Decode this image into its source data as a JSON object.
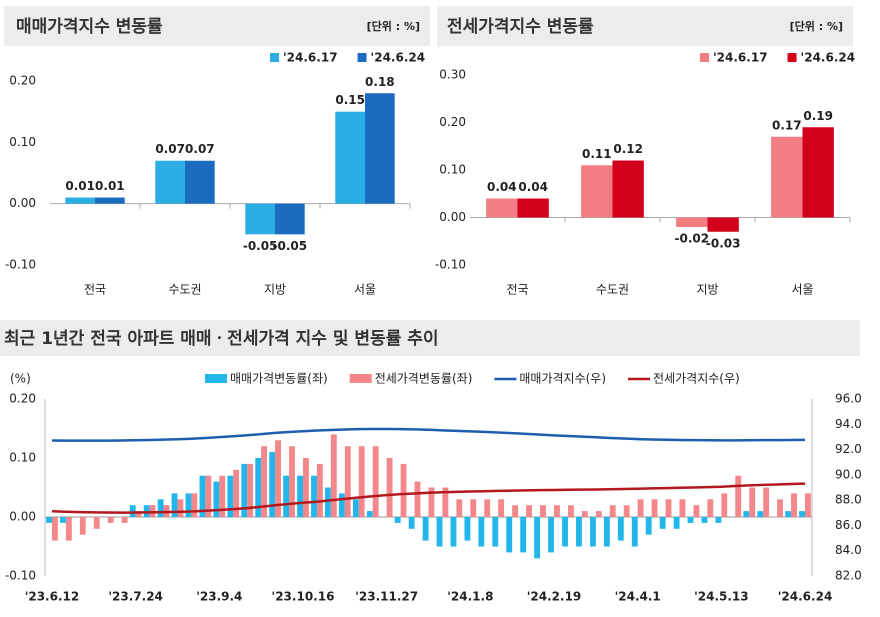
{
  "chart_data": [
    {
      "type": "bar",
      "title": "매매가격지수 변동률",
      "unit": "[단위 : %]",
      "categories": [
        "전국",
        "수도권",
        "지방",
        "서울"
      ],
      "series": [
        {
          "name": "'24.6.17",
          "color": "#2aaee4",
          "values": [
            0.01,
            0.07,
            -0.05,
            0.15
          ]
        },
        {
          "name": "'24.6.24",
          "color": "#1b6cc0",
          "values": [
            0.01,
            0.07,
            -0.05,
            0.18
          ]
        }
      ],
      "ylim": [
        -0.1,
        0.2
      ],
      "yticks": [
        {
          "value": -0.1,
          "label": "-0.10"
        },
        {
          "value": 0,
          "label": "0.00"
        },
        {
          "value": 0.1,
          "label": "0.10"
        },
        {
          "value": 0.2,
          "label": "0.20"
        }
      ]
    },
    {
      "type": "bar",
      "title": "전세가격지수 변동률",
      "unit": "[단위 : %]",
      "categories": [
        "전국",
        "수도권",
        "지방",
        "서울"
      ],
      "series": [
        {
          "name": "'24.6.17",
          "color": "#f07e82",
          "values": [
            0.04,
            0.11,
            -0.02,
            0.17
          ]
        },
        {
          "name": "'24.6.24",
          "color": "#d3001c",
          "values": [
            0.04,
            0.12,
            -0.03,
            0.19
          ]
        }
      ],
      "ylim": [
        -0.1,
        0.3
      ],
      "yticks": [
        {
          "value": -0.1,
          "label": "-0.10"
        },
        {
          "value": 0,
          "label": "0.00"
        },
        {
          "value": 0.1,
          "label": "0.10"
        },
        {
          "value": 0.2,
          "label": "0.20"
        },
        {
          "value": 0.3,
          "label": "0.30"
        }
      ]
    },
    {
      "type": "combo",
      "title": "최근 1년간 전국 아파트 매매ㆍ전세가격 지수 및 변동률 추이",
      "ylabel": "(%)",
      "categories": [
        "'23.6.12",
        null,
        null,
        null,
        null,
        null,
        "'23.7.24",
        null,
        null,
        null,
        null,
        null,
        "'23.9.4",
        null,
        null,
        null,
        null,
        null,
        "'23.10.16",
        null,
        null,
        null,
        null,
        null,
        "'23.11.27",
        null,
        null,
        null,
        null,
        null,
        "'24.1.8",
        null,
        null,
        null,
        null,
        null,
        "'24.2.19",
        null,
        null,
        null,
        null,
        null,
        "'24.4.1",
        null,
        null,
        null,
        null,
        null,
        "'24.5.13",
        null,
        null,
        null,
        null,
        null,
        "'24.6.24"
      ],
      "series": [
        {
          "name": "매매가격변동률(좌)",
          "kind": "bar",
          "color": "#22b6ea",
          "values": [
            -0.01,
            -0.01,
            0.0,
            0.0,
            0.0,
            0.0,
            0.02,
            0.02,
            0.03,
            0.04,
            0.04,
            0.07,
            0.06,
            0.07,
            0.09,
            0.1,
            0.11,
            0.07,
            0.07,
            0.07,
            0.05,
            0.04,
            0.03,
            0.01,
            0.0,
            -0.01,
            -0.02,
            -0.04,
            -0.05,
            -0.05,
            -0.04,
            -0.05,
            -0.05,
            -0.06,
            -0.06,
            -0.07,
            -0.06,
            -0.05,
            -0.05,
            -0.05,
            -0.05,
            -0.04,
            -0.05,
            -0.03,
            -0.02,
            -0.02,
            -0.01,
            -0.01,
            -0.01,
            0.0,
            0.01,
            0.01,
            0.0,
            0.01,
            0.01
          ]
        },
        {
          "name": "전세가격변동률(좌)",
          "kind": "bar",
          "color": "#f4878b",
          "values": [
            -0.04,
            -0.04,
            -0.03,
            -0.02,
            -0.01,
            -0.01,
            0.01,
            0.02,
            0.02,
            0.03,
            0.04,
            0.07,
            0.07,
            0.08,
            0.09,
            0.12,
            0.13,
            0.12,
            0.1,
            0.09,
            0.14,
            0.12,
            0.12,
            0.12,
            0.1,
            0.09,
            0.06,
            0.05,
            0.05,
            0.03,
            0.03,
            0.03,
            0.03,
            0.02,
            0.02,
            0.02,
            0.02,
            0.02,
            0.01,
            0.01,
            0.02,
            0.02,
            0.03,
            0.03,
            0.03,
            0.03,
            0.02,
            0.03,
            0.04,
            0.07,
            0.05,
            0.05,
            0.03,
            0.04,
            0.04
          ]
        },
        {
          "name": "매매가격지수(우)",
          "kind": "line",
          "axis": "y2",
          "color": "#1d5fae",
          "values": [
            92.72,
            92.71,
            92.71,
            92.71,
            92.71,
            92.72,
            92.74,
            92.76,
            92.79,
            92.82,
            92.86,
            92.92,
            92.98,
            93.05,
            93.13,
            93.22,
            93.32,
            93.39,
            93.45,
            93.51,
            93.55,
            93.59,
            93.62,
            93.63,
            93.63,
            93.62,
            93.6,
            93.57,
            93.52,
            93.48,
            93.44,
            93.4,
            93.35,
            93.3,
            93.24,
            93.18,
            93.12,
            93.07,
            93.02,
            92.97,
            92.92,
            92.88,
            92.83,
            92.8,
            92.78,
            92.76,
            92.75,
            92.74,
            92.73,
            92.73,
            92.74,
            92.75,
            92.75,
            92.76,
            92.77
          ]
        },
        {
          "name": "전세가격지수(우)",
          "kind": "line",
          "axis": "y2",
          "color": "#b3191c",
          "values": [
            87.12,
            87.08,
            87.05,
            87.03,
            87.02,
            87.01,
            87.02,
            87.03,
            87.05,
            87.07,
            87.1,
            87.16,
            87.22,
            87.29,
            87.37,
            87.48,
            87.6,
            87.7,
            87.79,
            87.87,
            87.99,
            88.1,
            88.21,
            88.31,
            88.4,
            88.48,
            88.53,
            88.58,
            88.62,
            88.65,
            88.68,
            88.7,
            88.73,
            88.75,
            88.77,
            88.79,
            88.8,
            88.82,
            88.83,
            88.84,
            88.86,
            88.88,
            88.9,
            88.93,
            88.95,
            88.98,
            89.0,
            89.03,
            89.06,
            89.12,
            89.17,
            89.21,
            89.24,
            89.28,
            89.31
          ]
        }
      ],
      "ylim": [
        -0.1,
        0.2
      ],
      "yticks": [
        {
          "value": -0.1,
          "label": "-0.10"
        },
        {
          "value": 0,
          "label": "0.00"
        },
        {
          "value": 0.1,
          "label": "0.10"
        },
        {
          "value": 0.2,
          "label": "0.20"
        }
      ],
      "y2lim": [
        82,
        96
      ],
      "y2ticks": [
        {
          "value": 82,
          "label": "82.0"
        },
        {
          "value": 84,
          "label": "84.0"
        },
        {
          "value": 86,
          "label": "86.0"
        },
        {
          "value": 88,
          "label": "88.0"
        },
        {
          "value": 90,
          "label": "90.0"
        },
        {
          "value": 92,
          "label": "92.0"
        },
        {
          "value": 94,
          "label": "94.0"
        },
        {
          "value": 96,
          "label": "96.0"
        }
      ]
    }
  ]
}
